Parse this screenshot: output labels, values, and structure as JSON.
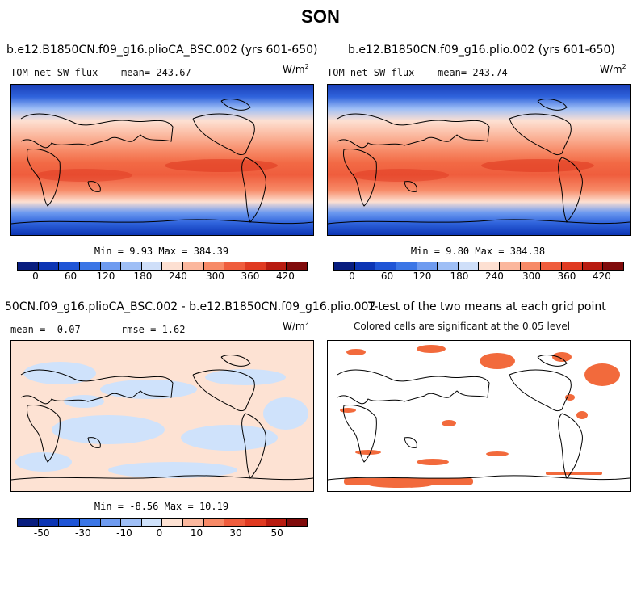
{
  "figure_title": "SON",
  "colors": {
    "abs_palette": [
      "#081d7f",
      "#0c35b4",
      "#1f55d6",
      "#3b76e6",
      "#6e9bf0",
      "#9fbff6",
      "#cfdff9",
      "#fde0d2",
      "#fbb79d",
      "#f78a67",
      "#ef5d3d",
      "#e03a21",
      "#b81b10",
      "#800b0b"
    ],
    "diff_palette": [
      "#081d7f",
      "#0c35b4",
      "#1f55d6",
      "#3b76e6",
      "#6e9bf0",
      "#9fbff6",
      "#cfe2fb",
      "#fde2d3",
      "#fbb89e",
      "#f78a67",
      "#ef5d3d",
      "#e03a21",
      "#b81b10",
      "#800b0b"
    ],
    "sig_color": "#f26a3c"
  },
  "panels": {
    "tl": {
      "title": "b.e12.B1850CN.f09_g16.plioCA_BSC.002 (yrs 601-650)",
      "var": "TOM net SW flux",
      "mean": "mean= 243.67",
      "unit": "W/m",
      "unit_exp": "2",
      "minmax": "Min =   9.93 Max = 384.39",
      "ticks": [
        "0",
        "60",
        "120",
        "180",
        "240",
        "300",
        "360",
        "420"
      ]
    },
    "tr": {
      "title": "b.e12.B1850CN.f09_g16.plio.002 (yrs 601-650)",
      "var": "TOM net SW flux",
      "mean": "mean= 243.74",
      "unit": "W/m",
      "unit_exp": "2",
      "minmax": "Min =   9.80 Max = 384.38",
      "ticks": [
        "0",
        "60",
        "120",
        "180",
        "240",
        "300",
        "360",
        "420"
      ]
    },
    "bl": {
      "title": "50CN.f09_g16.plioCA_BSC.002 - b.e12.B1850CN.f09_g16.plio.002",
      "mean": "mean =  -0.07",
      "rmse": "rmse =   1.62",
      "unit": "W/m",
      "unit_exp": "2",
      "minmax": "Min =  -8.56 Max =  10.19",
      "ticks": [
        "-50",
        "-30",
        "-10",
        "0",
        "10",
        "30",
        "50"
      ]
    },
    "br": {
      "title": "T-test of the two means at each grid point",
      "subtitle": "Colored cells are significant at the 0.05 level"
    }
  },
  "chart_data": [
    {
      "type": "heatmap",
      "title": "b.e12.B1850CN.f09_g16.plioCA_BSC.002 (yrs 601-650)",
      "variable": "TOM net SW flux",
      "units": "W/m^2",
      "mean": 243.67,
      "min": 9.93,
      "max": 384.39,
      "colorbar_range": [
        0,
        420
      ],
      "colorbar_labels": [
        0,
        60,
        120,
        180,
        240,
        300,
        360,
        420
      ],
      "lat_profile": [
        [
          90,
          20
        ],
        [
          80,
          60
        ],
        [
          70,
          110
        ],
        [
          60,
          150
        ],
        [
          50,
          185
        ],
        [
          40,
          225
        ],
        [
          30,
          280
        ],
        [
          20,
          320
        ],
        [
          10,
          345
        ],
        [
          0,
          330
        ],
        [
          -10,
          350
        ],
        [
          -20,
          360
        ],
        [
          -30,
          310
        ],
        [
          -40,
          260
        ],
        [
          -50,
          210
        ],
        [
          -60,
          140
        ],
        [
          -70,
          80
        ],
        [
          -80,
          40
        ],
        [
          -90,
          15
        ]
      ]
    },
    {
      "type": "heatmap",
      "title": "b.e12.B1850CN.f09_g16.plio.002 (yrs 601-650)",
      "variable": "TOM net SW flux",
      "units": "W/m^2",
      "mean": 243.74,
      "min": 9.8,
      "max": 384.38,
      "colorbar_range": [
        0,
        420
      ],
      "colorbar_labels": [
        0,
        60,
        120,
        180,
        240,
        300,
        360,
        420
      ],
      "lat_profile": [
        [
          90,
          20
        ],
        [
          80,
          60
        ],
        [
          70,
          110
        ],
        [
          60,
          150
        ],
        [
          50,
          185
        ],
        [
          40,
          225
        ],
        [
          30,
          280
        ],
        [
          20,
          320
        ],
        [
          10,
          345
        ],
        [
          0,
          330
        ],
        [
          -10,
          350
        ],
        [
          -20,
          360
        ],
        [
          -30,
          310
        ],
        [
          -40,
          260
        ],
        [
          -50,
          210
        ],
        [
          -60,
          140
        ],
        [
          -70,
          80
        ],
        [
          -80,
          40
        ],
        [
          -90,
          15
        ]
      ]
    },
    {
      "type": "heatmap",
      "title": "50CN.f09_g16.plioCA_BSC.002 - b.e12.B1850CN.f09_g16.plio.002",
      "units": "W/m^2",
      "mean": -0.07,
      "rmse": 1.62,
      "min": -8.56,
      "max": 10.19,
      "colorbar_range": [
        -60,
        60
      ],
      "colorbar_labels": [
        -50,
        -30,
        -10,
        0,
        10,
        30,
        50
      ]
    },
    {
      "type": "heatmap",
      "title": "T-test of the two means at each grid point",
      "subtitle": "Colored cells are significant at the 0.05 level",
      "significance_level": 0.05
    }
  ]
}
